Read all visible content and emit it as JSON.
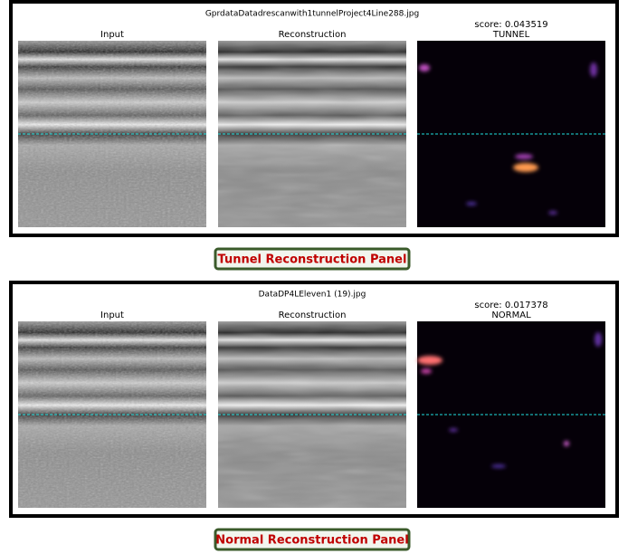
{
  "panels": [
    {
      "filename": "GprdataDatadrescanwith1tunnelProject4Line288.jpg",
      "input_label": "Input",
      "reconstruction_label": "Reconstruction",
      "score": "score: 0.043519",
      "prediction": "TUNNEL",
      "caption": "Tunnel Reconstruction Panel"
    },
    {
      "filename": "DataDP4LEleven1 (19).jpg",
      "input_label": "Input",
      "reconstruction_label": "Reconstruction",
      "score": "score: 0.017378",
      "prediction": "NORMAL",
      "caption": "Normal Reconstruction Panel"
    }
  ]
}
